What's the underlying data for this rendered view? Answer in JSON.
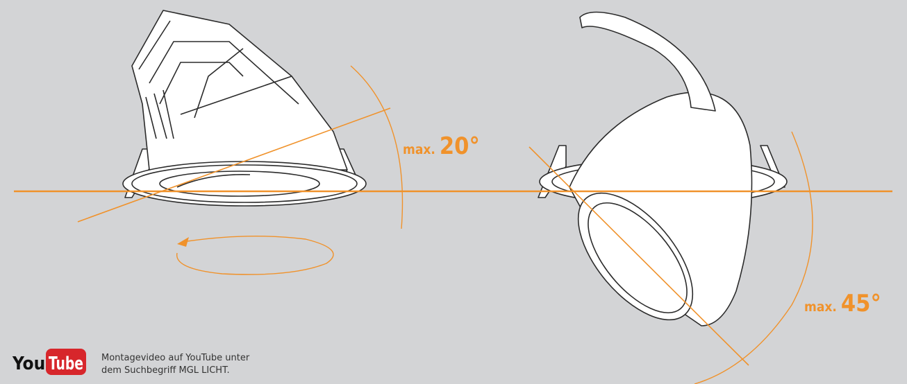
{
  "labels": [
    {
      "prefix": "max.",
      "angle": "20°"
    },
    {
      "prefix": "max.",
      "angle": "45°"
    }
  ],
  "youtube": {
    "logo_you": "You",
    "logo_tube": "Tube",
    "lines": [
      "Montagevideo auf YouTube unter",
      "dem Suchbegriff MGL LICHT."
    ]
  }
}
